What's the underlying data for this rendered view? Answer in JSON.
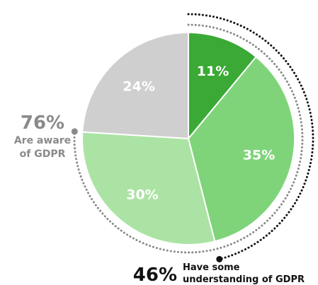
{
  "chart_data": {
    "type": "pie",
    "slices": [
      {
        "label": "11%",
        "value": 11,
        "color": "#3aa935"
      },
      {
        "label": "35%",
        "value": 35,
        "color": "#7fd47a"
      },
      {
        "label": "30%",
        "value": 30,
        "color": "#abe3a4"
      },
      {
        "label": "24%",
        "value": 24,
        "color": "#cfcfcf"
      }
    ],
    "start": "12 o'clock",
    "direction": "clockwise",
    "annotations": [
      {
        "value": "76%",
        "text_lines": [
          "Are aware",
          "of GDPR"
        ],
        "color": "#8a8a8a",
        "spans_slices": [
          "11%",
          "35%",
          "30%"
        ]
      },
      {
        "value": "46%",
        "text_lines": [
          "Have some",
          "understanding of GDPR"
        ],
        "color": "#111111",
        "spans_slices": [
          "11%",
          "35%"
        ]
      }
    ]
  }
}
